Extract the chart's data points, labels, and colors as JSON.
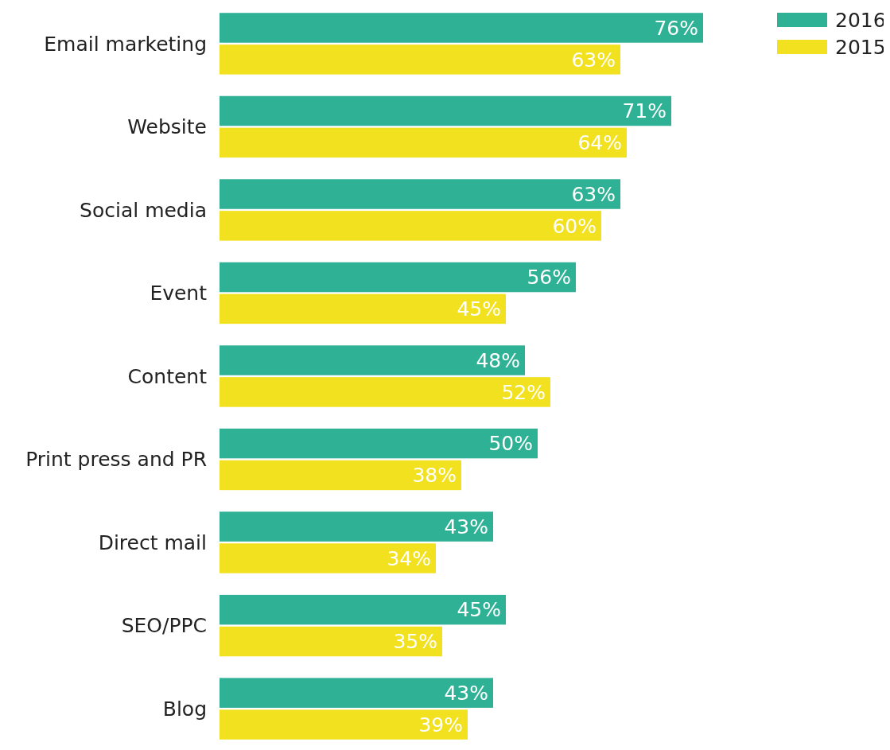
{
  "chart_data": {
    "type": "bar",
    "orientation": "horizontal",
    "legend": "top right",
    "categories": [
      "Email marketing",
      "Website",
      "Social media",
      "Event",
      "Content",
      "Print press and PR",
      "Direct mail",
      "SEO/PPC",
      "Blog"
    ],
    "series": [
      {
        "name": "2016",
        "color": "#2fb195",
        "values": [
          76,
          71,
          63,
          56,
          48,
          50,
          43,
          45,
          43
        ],
        "value_labels": [
          "76%",
          "71%",
          "63%",
          "56%",
          "48%",
          "50%",
          "43%",
          "45%",
          "43%"
        ]
      },
      {
        "name": "2015",
        "color": "#f2e11e",
        "values": [
          63,
          64,
          60,
          45,
          52,
          38,
          34,
          35,
          39
        ],
        "value_labels": [
          "63%",
          "64%",
          "60%",
          "45%",
          "52%",
          "38%",
          "34%",
          "35%",
          "39%"
        ]
      }
    ]
  }
}
